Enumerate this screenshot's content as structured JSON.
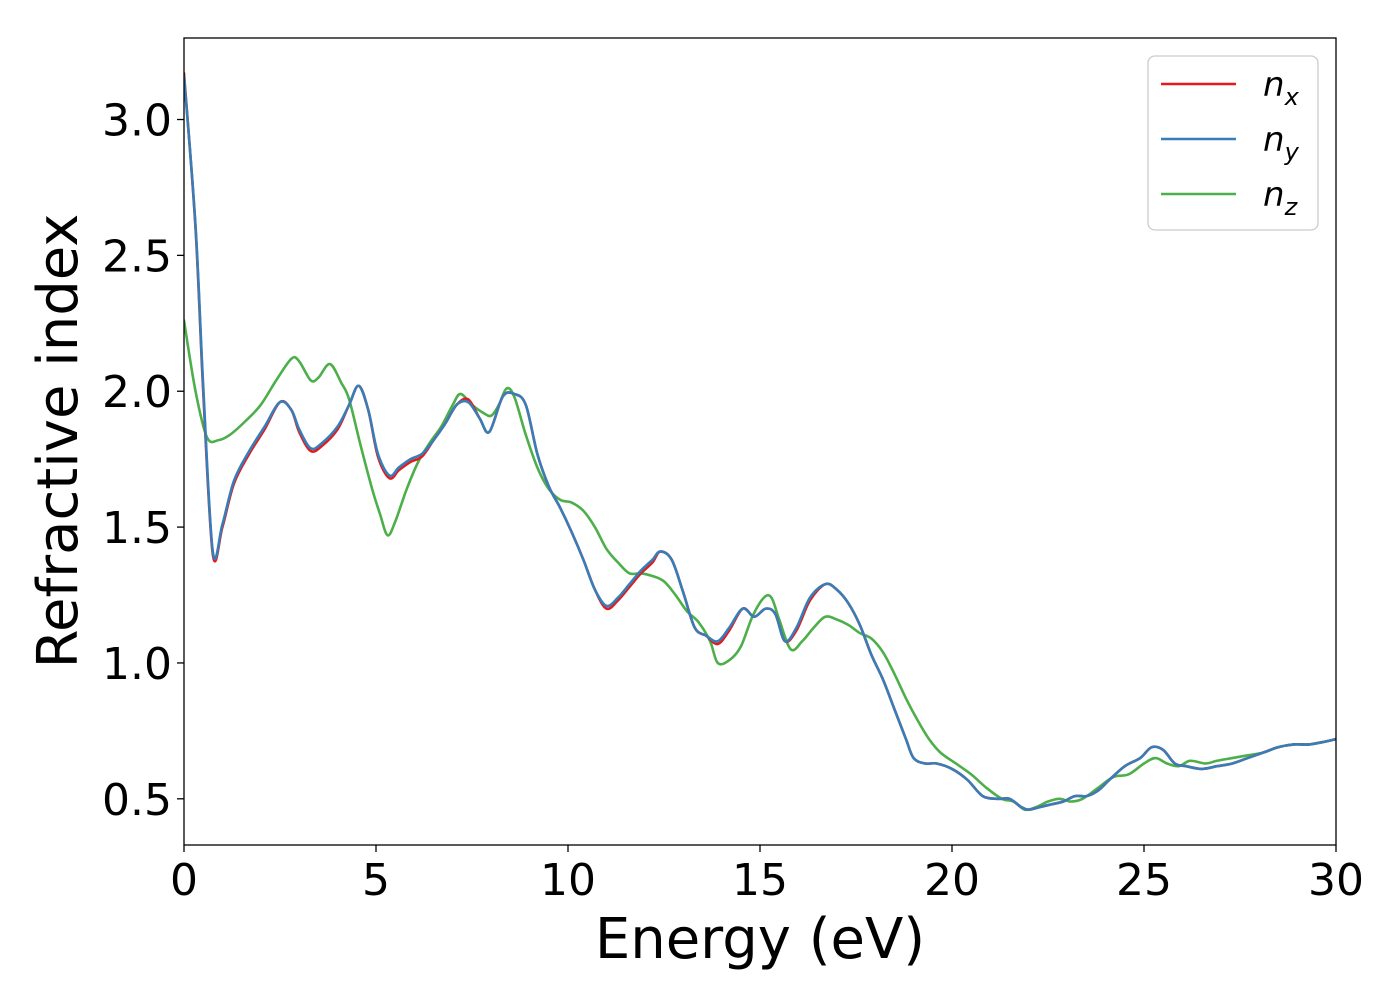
{
  "chart_data": {
    "type": "line",
    "xlabel": "Energy (eV)",
    "ylabel": "Refractive index",
    "xlim": [
      0,
      30
    ],
    "ylim": [
      0.33,
      3.3
    ],
    "xticks": [
      0,
      5,
      10,
      15,
      20,
      25,
      30
    ],
    "yticks": [
      0.5,
      1.0,
      1.5,
      2.0,
      2.5,
      3.0
    ],
    "grid": false,
    "legend_position": "top-right",
    "series": [
      {
        "name": "n",
        "subscript": "x",
        "color": "#e41a1c",
        "x": [
          0,
          0.3,
          0.5,
          0.75,
          1.0,
          1.3,
          1.7,
          2.1,
          2.5,
          2.8,
          3.0,
          3.3,
          3.6,
          4.0,
          4.3,
          4.55,
          4.8,
          5.05,
          5.35,
          5.6,
          5.9,
          6.2,
          6.5,
          6.8,
          7.1,
          7.4,
          7.7,
          7.95,
          8.3,
          8.6,
          8.9,
          9.2,
          9.5,
          9.8,
          10.1,
          10.4,
          10.7,
          11.0,
          11.3,
          11.6,
          11.9,
          12.2,
          12.4,
          12.7,
          13.0,
          13.3,
          13.6,
          13.9,
          14.2,
          14.55,
          14.85,
          15.15,
          15.4,
          15.65,
          15.95,
          16.3,
          16.7,
          17.0,
          17.3,
          17.6,
          17.9,
          18.2,
          18.5,
          18.8,
          19.0,
          19.3,
          19.6,
          20.0,
          20.4,
          20.8,
          21.2,
          21.5,
          21.8,
          22.0,
          22.3,
          22.6,
          22.9,
          23.2,
          23.5,
          23.8,
          24.1,
          24.5,
          24.9,
          25.2,
          25.5,
          25.8,
          26.1,
          26.5,
          26.9,
          27.3,
          27.7,
          28.1,
          28.5,
          28.9,
          29.3,
          29.7,
          30.0
        ],
        "y": [
          3.17,
          2.6,
          2.0,
          1.4,
          1.5,
          1.66,
          1.77,
          1.86,
          1.96,
          1.93,
          1.85,
          1.78,
          1.8,
          1.86,
          1.95,
          2.02,
          1.93,
          1.76,
          1.68,
          1.71,
          1.74,
          1.76,
          1.82,
          1.88,
          1.95,
          1.97,
          1.9,
          1.85,
          1.98,
          1.99,
          1.95,
          1.77,
          1.65,
          1.57,
          1.48,
          1.38,
          1.27,
          1.2,
          1.23,
          1.28,
          1.33,
          1.37,
          1.41,
          1.38,
          1.26,
          1.13,
          1.1,
          1.07,
          1.12,
          1.2,
          1.17,
          1.2,
          1.18,
          1.08,
          1.12,
          1.23,
          1.29,
          1.27,
          1.22,
          1.14,
          1.03,
          0.94,
          0.83,
          0.72,
          0.65,
          0.63,
          0.63,
          0.61,
          0.57,
          0.51,
          0.5,
          0.5,
          0.47,
          0.46,
          0.47,
          0.48,
          0.49,
          0.51,
          0.51,
          0.53,
          0.57,
          0.62,
          0.65,
          0.69,
          0.68,
          0.63,
          0.62,
          0.61,
          0.62,
          0.63,
          0.65,
          0.67,
          0.69,
          0.7,
          0.7,
          0.71,
          0.72
        ]
      },
      {
        "name": "n",
        "subscript": "y",
        "color": "#377eb8",
        "x": [
          0,
          0.3,
          0.5,
          0.75,
          1.0,
          1.3,
          1.7,
          2.1,
          2.5,
          2.8,
          3.0,
          3.3,
          3.6,
          4.0,
          4.3,
          4.55,
          4.8,
          5.05,
          5.35,
          5.6,
          5.9,
          6.2,
          6.5,
          6.8,
          7.1,
          7.4,
          7.7,
          7.95,
          8.3,
          8.6,
          8.9,
          9.2,
          9.5,
          9.8,
          10.1,
          10.4,
          10.7,
          11.0,
          11.3,
          11.6,
          11.9,
          12.2,
          12.4,
          12.7,
          13.0,
          13.3,
          13.6,
          13.9,
          14.2,
          14.55,
          14.85,
          15.15,
          15.4,
          15.65,
          15.95,
          16.3,
          16.7,
          17.0,
          17.3,
          17.6,
          17.9,
          18.2,
          18.5,
          18.8,
          19.0,
          19.3,
          19.6,
          20.0,
          20.4,
          20.8,
          21.2,
          21.5,
          21.8,
          22.0,
          22.3,
          22.6,
          22.9,
          23.2,
          23.5,
          23.8,
          24.1,
          24.5,
          24.9,
          25.2,
          25.5,
          25.8,
          26.1,
          26.5,
          26.9,
          27.3,
          27.7,
          28.1,
          28.5,
          28.9,
          29.3,
          29.7,
          30.0
        ],
        "y": [
          3.16,
          2.61,
          2.02,
          1.41,
          1.51,
          1.67,
          1.78,
          1.87,
          1.96,
          1.93,
          1.86,
          1.79,
          1.81,
          1.87,
          1.95,
          2.02,
          1.93,
          1.77,
          1.69,
          1.72,
          1.75,
          1.77,
          1.82,
          1.88,
          1.95,
          1.96,
          1.9,
          1.85,
          1.98,
          1.99,
          1.95,
          1.77,
          1.65,
          1.57,
          1.48,
          1.38,
          1.27,
          1.21,
          1.24,
          1.29,
          1.34,
          1.38,
          1.41,
          1.38,
          1.26,
          1.13,
          1.1,
          1.08,
          1.13,
          1.2,
          1.17,
          1.2,
          1.18,
          1.08,
          1.13,
          1.24,
          1.29,
          1.27,
          1.22,
          1.14,
          1.03,
          0.94,
          0.83,
          0.72,
          0.65,
          0.63,
          0.63,
          0.61,
          0.57,
          0.51,
          0.5,
          0.5,
          0.47,
          0.46,
          0.47,
          0.48,
          0.49,
          0.51,
          0.51,
          0.53,
          0.57,
          0.62,
          0.65,
          0.69,
          0.68,
          0.63,
          0.62,
          0.61,
          0.62,
          0.63,
          0.65,
          0.67,
          0.69,
          0.7,
          0.7,
          0.71,
          0.72
        ]
      },
      {
        "name": "n",
        "subscript": "z",
        "color": "#4daf4a",
        "x": [
          0,
          0.3,
          0.6,
          0.9,
          1.2,
          1.6,
          2.0,
          2.4,
          2.8,
          3.0,
          3.3,
          3.5,
          3.8,
          4.1,
          4.3,
          4.6,
          4.9,
          5.1,
          5.3,
          5.5,
          5.8,
          6.1,
          6.4,
          6.7,
          7.0,
          7.2,
          7.5,
          7.8,
          8.0,
          8.2,
          8.4,
          8.6,
          8.9,
          9.2,
          9.5,
          9.8,
          10.1,
          10.4,
          10.7,
          11.0,
          11.3,
          11.6,
          11.9,
          12.2,
          12.5,
          12.8,
          13.1,
          13.4,
          13.7,
          13.9,
          14.2,
          14.5,
          14.8,
          15.1,
          15.3,
          15.5,
          15.8,
          16.1,
          16.4,
          16.7,
          17.0,
          17.3,
          17.6,
          17.9,
          18.2,
          18.5,
          18.8,
          19.1,
          19.4,
          19.7,
          20.1,
          20.5,
          20.9,
          21.3,
          21.6,
          21.9,
          22.2,
          22.5,
          22.8,
          23.1,
          23.4,
          23.8,
          24.2,
          24.6,
          25.0,
          25.3,
          25.6,
          25.9,
          26.2,
          26.6,
          26.9,
          27.3,
          27.7,
          28.1,
          28.5,
          28.9,
          29.3,
          29.7,
          30.0
        ],
        "y": [
          2.26,
          2.0,
          1.83,
          1.82,
          1.84,
          1.89,
          1.95,
          2.04,
          2.12,
          2.11,
          2.04,
          2.05,
          2.1,
          2.03,
          1.97,
          1.8,
          1.64,
          1.55,
          1.47,
          1.52,
          1.64,
          1.74,
          1.81,
          1.87,
          1.95,
          1.99,
          1.95,
          1.92,
          1.91,
          1.95,
          2.01,
          1.98,
          1.84,
          1.72,
          1.64,
          1.6,
          1.59,
          1.56,
          1.5,
          1.42,
          1.37,
          1.33,
          1.33,
          1.32,
          1.3,
          1.25,
          1.19,
          1.15,
          1.08,
          1.0,
          1.01,
          1.06,
          1.17,
          1.24,
          1.24,
          1.16,
          1.05,
          1.08,
          1.13,
          1.17,
          1.16,
          1.14,
          1.11,
          1.09,
          1.04,
          0.96,
          0.87,
          0.79,
          0.72,
          0.67,
          0.63,
          0.59,
          0.54,
          0.5,
          0.49,
          0.46,
          0.47,
          0.49,
          0.5,
          0.49,
          0.5,
          0.54,
          0.58,
          0.59,
          0.63,
          0.65,
          0.63,
          0.62,
          0.64,
          0.63,
          0.64,
          0.65,
          0.66,
          0.67,
          0.69,
          0.7,
          0.7,
          0.71,
          0.72
        ]
      }
    ]
  }
}
